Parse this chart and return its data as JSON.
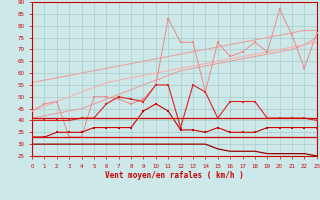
{
  "xlabel": "Vent moyen/en rafales ( km/h )",
  "background_color": "#cce8e8",
  "grid_color": "#aacccc",
  "xlim": [
    0,
    23
  ],
  "ylim": [
    25,
    90
  ],
  "yticks": [
    25,
    30,
    35,
    40,
    45,
    50,
    55,
    60,
    65,
    70,
    75,
    80,
    85,
    90
  ],
  "xticks": [
    0,
    1,
    2,
    3,
    4,
    5,
    6,
    7,
    8,
    9,
    10,
    11,
    12,
    13,
    14,
    15,
    16,
    17,
    18,
    19,
    20,
    21,
    22,
    23
  ],
  "x": [
    0,
    1,
    2,
    3,
    4,
    5,
    6,
    7,
    8,
    9,
    10,
    11,
    12,
    13,
    14,
    15,
    16,
    17,
    18,
    19,
    20,
    21,
    22,
    23
  ],
  "line_bottom_dark": [
    30,
    30,
    30,
    30,
    30,
    30,
    30,
    30,
    30,
    30,
    30,
    30,
    30,
    30,
    30,
    28,
    27,
    27,
    27,
    26,
    26,
    26,
    26,
    25
  ],
  "line_hline1": [
    33,
    33,
    33,
    33,
    33,
    33,
    33,
    33,
    33,
    33,
    33,
    33,
    33,
    33,
    33,
    33,
    33,
    33,
    33,
    33,
    33,
    33,
    33,
    33
  ],
  "line_hline2": [
    41,
    41,
    41,
    41,
    41,
    41,
    41,
    41,
    41,
    41,
    41,
    41,
    41,
    41,
    41,
    41,
    41,
    41,
    41,
    41,
    41,
    41,
    41,
    41
  ],
  "line_med1": [
    33,
    33,
    35,
    35,
    35,
    37,
    37,
    37,
    37,
    44,
    47,
    44,
    36,
    36,
    35,
    37,
    35,
    35,
    35,
    37,
    37,
    37,
    37,
    37
  ],
  "line_med2": [
    40,
    40,
    40,
    40,
    41,
    41,
    47,
    50,
    49,
    48,
    55,
    55,
    37,
    55,
    52,
    41,
    48,
    48,
    48,
    41,
    41,
    41,
    41,
    40
  ],
  "line_light1": [
    44,
    47,
    48,
    33,
    33,
    50,
    50,
    49,
    47,
    49,
    55,
    83,
    73,
    73,
    52,
    73,
    67,
    69,
    73,
    69,
    87,
    76,
    62,
    77
  ],
  "trend_lo": [
    41,
    42,
    43,
    44,
    45,
    47,
    49,
    51,
    53,
    55,
    57,
    59,
    61,
    62,
    63,
    64,
    65,
    66,
    67,
    68,
    69,
    70,
    72,
    75
  ],
  "trend_hi": [
    56,
    57,
    58,
    59,
    60,
    61,
    62,
    63,
    64,
    65,
    66,
    67,
    68,
    69,
    70,
    71,
    72,
    73,
    74,
    75,
    76,
    77,
    78,
    78
  ],
  "trend_mid": [
    44,
    46,
    48,
    50,
    52,
    54,
    56,
    57,
    58,
    59,
    60,
    61,
    62,
    63,
    64,
    65,
    66,
    67,
    68,
    69,
    70,
    71,
    72,
    73
  ]
}
